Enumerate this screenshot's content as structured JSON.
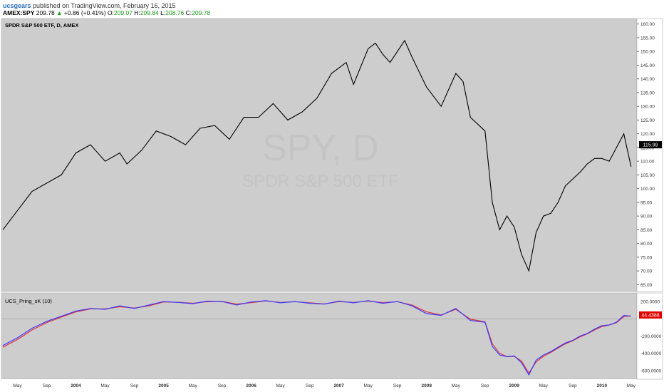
{
  "header": {
    "publisher": "ucsgears",
    "published_text": "published on TradingView.com, February 16, 2015",
    "symbol": "AMEX:SPY",
    "last": "209.78",
    "change_arrow": "▲",
    "change": "+0.86 (+0.41%)",
    "open_label": "O:",
    "open": "209.07",
    "high_label": "H:",
    "high": "209.84",
    "low_label": "L:",
    "low": "208.76",
    "close_label": "C:",
    "close": "209.78"
  },
  "watermark": {
    "big": "SPY, D",
    "sub": "SPDR S&P 500 ETF"
  },
  "colors": {
    "panel_bg": "#cdcdcd",
    "price_line": "#000000",
    "osc_blue": "#3b3bff",
    "osc_red": "#e0303a",
    "last_price_tag": "#000000",
    "osc_value_tag": "#e00000"
  },
  "chart_data": [
    {
      "type": "line",
      "title": "SPDR S&P 500 ETF, D, AMEX",
      "ylim": [
        62.5,
        162
      ],
      "yticks": [
        "160.00",
        "155.00",
        "150.00",
        "145.00",
        "140.00",
        "135.00",
        "130.00",
        "125.00",
        "120.00",
        "115.00",
        "110.00",
        "105.00",
        "100.00",
        "95.00",
        "90.00",
        "85.00",
        "80.00",
        "75.00",
        "70.00",
        "65.00"
      ],
      "last_value_label": "115.99",
      "xlabels": [
        "May",
        "Sep",
        "2004",
        "May",
        "Sep",
        "2005",
        "May",
        "Sep",
        "2006",
        "May",
        "Sep",
        "2007",
        "May",
        "Sep",
        "2008",
        "May",
        "Sep",
        "2009",
        "May",
        "Sep",
        "2010",
        "May"
      ],
      "series": [
        {
          "x": [
            "2003-03",
            "2003-05",
            "2003-07",
            "2003-09",
            "2003-11",
            "2004-01",
            "2004-03",
            "2004-05",
            "2004-07",
            "2004-08",
            "2004-10",
            "2004-12",
            "2005-02",
            "2005-04",
            "2005-06",
            "2005-08",
            "2005-10",
            "2005-12",
            "2006-02",
            "2006-04",
            "2006-06",
            "2006-08",
            "2006-10",
            "2006-12",
            "2007-02",
            "2007-03",
            "2007-05",
            "2007-06",
            "2007-07",
            "2007-08",
            "2007-10",
            "2007-11",
            "2008-01",
            "2008-03",
            "2008-05",
            "2008-06",
            "2008-07",
            "2008-09",
            "2008-10",
            "2008-11",
            "2008-12",
            "2009-01",
            "2009-02",
            "2009-03",
            "2009-04",
            "2009-05",
            "2009-06",
            "2009-07",
            "2009-08",
            "2009-10",
            "2009-11",
            "2009-12",
            "2010-01",
            "2010-02",
            "2010-04",
            "2010-05"
          ],
          "y": [
            85,
            92,
            99,
            102,
            105,
            113,
            116,
            110,
            113,
            109,
            114,
            121,
            119,
            116,
            122,
            123,
            118,
            126,
            126,
            131,
            125,
            128,
            133,
            142,
            146,
            138,
            151,
            153,
            149,
            146,
            154,
            148,
            137,
            130,
            142,
            139,
            126,
            121,
            95,
            85,
            90,
            86,
            76,
            70,
            84,
            90,
            91,
            95,
            101,
            106,
            109,
            111,
            111,
            110,
            120,
            108
          ]
        }
      ]
    },
    {
      "type": "line",
      "title": "UCS_Pring_sK (10)",
      "ylim": [
        -700,
        300
      ],
      "yticks": [
        "200.0000",
        "-200.0000",
        "-400.0000",
        "-600.0000"
      ],
      "last_value_label": "44.4388",
      "series": [
        {
          "name": "UCS_Pring_sK (10)",
          "x": [
            "2003-03",
            "2003-05",
            "2003-07",
            "2003-09",
            "2003-11",
            "2004-01",
            "2004-03",
            "2004-05",
            "2004-07",
            "2004-09",
            "2004-11",
            "2005-01",
            "2005-03",
            "2005-05",
            "2005-07",
            "2005-09",
            "2005-11",
            "2006-01",
            "2006-03",
            "2006-05",
            "2006-07",
            "2006-09",
            "2006-11",
            "2007-01",
            "2007-03",
            "2007-05",
            "2007-07",
            "2007-09",
            "2007-11",
            "2008-01",
            "2008-03",
            "2008-05",
            "2008-07",
            "2008-09",
            "2008-10",
            "2008-11",
            "2008-12",
            "2009-01",
            "2009-02",
            "2009-03",
            "2009-04",
            "2009-05",
            "2009-06",
            "2009-07",
            "2009-08",
            "2009-09",
            "2009-10",
            "2009-11",
            "2009-12",
            "2010-01",
            "2010-02",
            "2010-03",
            "2010-04",
            "2010-05"
          ],
          "y": [
            -310,
            -220,
            -110,
            -30,
            30,
            90,
            120,
            110,
            150,
            120,
            160,
            200,
            190,
            175,
            205,
            200,
            160,
            195,
            210,
            185,
            200,
            180,
            170,
            205,
            185,
            210,
            180,
            200,
            150,
            60,
            40,
            120,
            -20,
            -40,
            -320,
            -420,
            -440,
            -430,
            -510,
            -650,
            -480,
            -420,
            -380,
            -330,
            -280,
            -250,
            -200,
            -170,
            -120,
            -80,
            -70,
            -40,
            40,
            30
          ]
        },
        {
          "x": [
            "2003-03",
            "2003-05",
            "2003-07",
            "2003-09",
            "2003-11",
            "2004-01",
            "2004-03",
            "2004-05",
            "2004-07",
            "2004-09",
            "2004-11",
            "2005-01",
            "2005-03",
            "2005-05",
            "2005-07",
            "2005-09",
            "2005-11",
            "2006-01",
            "2006-03",
            "2006-05",
            "2006-07",
            "2006-09",
            "2006-11",
            "2007-01",
            "2007-03",
            "2007-05",
            "2007-07",
            "2007-09",
            "2007-11",
            "2008-01",
            "2008-03",
            "2008-05",
            "2008-07",
            "2008-09",
            "2008-10",
            "2008-11",
            "2008-12",
            "2009-01",
            "2009-02",
            "2009-03",
            "2009-04",
            "2009-05",
            "2009-06",
            "2009-07",
            "2009-08",
            "2009-09",
            "2009-10",
            "2009-11",
            "2009-12",
            "2010-01",
            "2010-02",
            "2010-03",
            "2010-04",
            "2010-05"
          ],
          "y": [
            -330,
            -240,
            -130,
            -45,
            20,
            80,
            115,
            115,
            140,
            125,
            150,
            195,
            192,
            180,
            198,
            202,
            170,
            188,
            208,
            190,
            198,
            185,
            172,
            200,
            190,
            205,
            188,
            198,
            160,
            80,
            45,
            110,
            -5,
            -35,
            -290,
            -400,
            -440,
            -435,
            -490,
            -630,
            -500,
            -435,
            -390,
            -340,
            -290,
            -255,
            -210,
            -175,
            -130,
            -90,
            -72,
            -45,
            25,
            35
          ]
        }
      ]
    }
  ]
}
